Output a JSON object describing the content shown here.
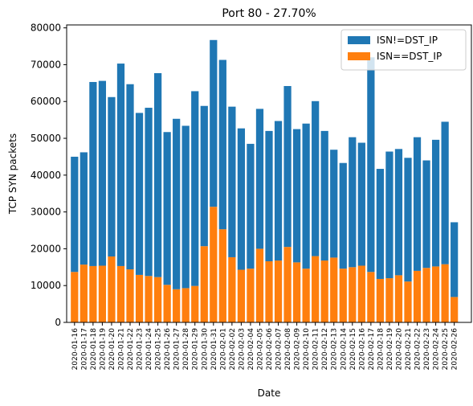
{
  "chart_data": {
    "type": "stacked_bar",
    "title": "Port 80 - 27.70%",
    "x_label": "Date",
    "y_label": "TCP SYN packets",
    "categories": [
      "2020-01-16",
      "2020-01-17",
      "2020-01-18",
      "2020-01-19",
      "2020-01-20",
      "2020-01-21",
      "2020-01-22",
      "2020-01-23",
      "2020-01-24",
      "2020-01-25",
      "2020-01-26",
      "2020-01-27",
      "2020-01-28",
      "2020-01-29",
      "2020-01-30",
      "2020-01-31",
      "2020-02-01",
      "2020-02-02",
      "2020-02-03",
      "2020-02-04",
      "2020-02-05",
      "2020-02-06",
      "2020-02-07",
      "2020-02-08",
      "2020-02-09",
      "2020-02-10",
      "2020-02-11",
      "2020-02-12",
      "2020-02-13",
      "2020-02-14",
      "2020-02-15",
      "2020-02-16",
      "2020-02-17",
      "2020-02-18",
      "2020-02-19",
      "2020-02-20",
      "2020-02-21",
      "2020-02-22",
      "2020-02-23",
      "2020-02-24",
      "2020-02-25",
      "2020-02-26"
    ],
    "series": [
      {
        "name": "ISN!=DST_IP",
        "color": "#1f77b4",
        "values": [
          31300,
          30500,
          50000,
          50200,
          43300,
          55000,
          50300,
          44000,
          45700,
          55400,
          41500,
          46300,
          44100,
          52900,
          38100,
          45300,
          46000,
          40900,
          38400,
          33900,
          38000,
          35400,
          37900,
          43700,
          36200,
          39400,
          42100,
          35200,
          29300,
          28700,
          35300,
          33400,
          58300,
          29900,
          34400,
          34300,
          33600,
          36300,
          29200,
          34400,
          38700,
          20300
        ]
      },
      {
        "name": "ISN==DST_IP",
        "color": "#ff7f0e",
        "values": [
          13700,
          15700,
          15300,
          15400,
          17900,
          15300,
          14400,
          12900,
          12600,
          12300,
          10200,
          9000,
          9300,
          9900,
          20700,
          31400,
          25300,
          17700,
          14300,
          14600,
          20000,
          16600,
          16800,
          20500,
          16300,
          14600,
          18000,
          16800,
          17600,
          14600,
          15000,
          15400,
          13700,
          11800,
          12000,
          12800,
          11100,
          14000,
          14800,
          15200,
          15800,
          6900
        ]
      }
    ],
    "ylim": [
      0,
      80800
    ],
    "yticks": [
      0,
      10000,
      20000,
      30000,
      40000,
      50000,
      60000,
      70000,
      80000
    ],
    "legend": "upper right"
  }
}
